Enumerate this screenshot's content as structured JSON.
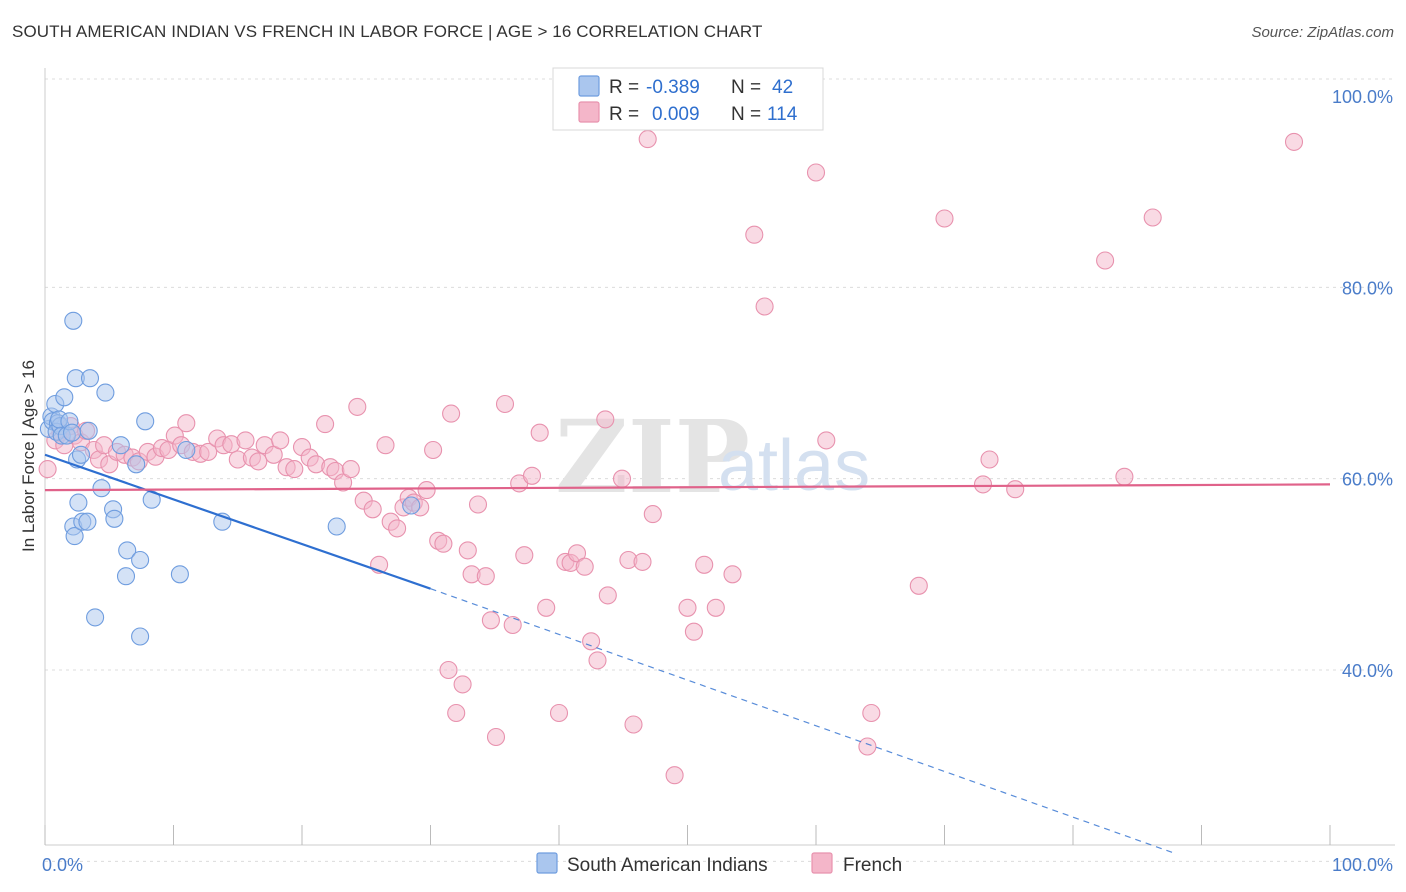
{
  "title": "SOUTH AMERICAN INDIAN VS FRENCH IN LABOR FORCE | AGE > 16 CORRELATION CHART",
  "source": "Source: ZipAtlas.com",
  "watermark": {
    "zip": "ZIP",
    "atlas": "atlas"
  },
  "colors": {
    "blue_fill": "#aac6ee",
    "blue_stroke": "#6f9ddf",
    "blue_line": "#2e6fd0",
    "pink_fill": "#f4b6c9",
    "pink_stroke": "#e892ae",
    "pink_line": "#e0628a",
    "grid": "#dcdcdc",
    "tick_text": "#4a7cc9"
  },
  "legend": {
    "rows": [
      {
        "r_label": "R =",
        "r_value": "-0.389",
        "n_label": "N =",
        "n_value": "42"
      },
      {
        "r_label": "R =",
        "r_value": "0.009",
        "n_label": "N =",
        "n_value": "114"
      }
    ]
  },
  "chart_data": {
    "type": "scatter",
    "title": "SOUTH AMERICAN INDIAN VS FRENCH IN LABOR FORCE | AGE > 16 CORRELATION CHART",
    "xlabel": "",
    "ylabel": "In Labor Force | Age > 16",
    "xlim": [
      0,
      100
    ],
    "ylim": [
      20,
      102
    ],
    "x_tick_labels": [
      {
        "value": 0,
        "label": "0.0%"
      },
      {
        "value": 100,
        "label": "100.0%"
      }
    ],
    "y_tick_labels": [
      {
        "value": 100,
        "label": "100.0%"
      },
      {
        "value": 80,
        "label": "80.0%"
      },
      {
        "value": 60,
        "label": "60.0%"
      },
      {
        "value": 40,
        "label": "40.0%"
      }
    ],
    "grid": true,
    "legend_position": "top-center",
    "series": [
      {
        "name": "South American Indians",
        "color": "#aac6ee",
        "r": -0.389,
        "n": 42,
        "trend": {
          "x0": 0,
          "y0": 62.5,
          "x1": 30,
          "y1": 48.5,
          "dash_to_x": 88,
          "dash_to_y": 20.8
        },
        "points": [
          [
            0.3,
            65.2
          ],
          [
            0.5,
            66.5
          ],
          [
            0.6,
            66.0
          ],
          [
            0.8,
            67.8
          ],
          [
            1.0,
            65.8
          ],
          [
            0.9,
            64.9
          ],
          [
            1.2,
            65.5
          ],
          [
            1.3,
            64.5
          ],
          [
            1.1,
            66.2
          ],
          [
            1.5,
            68.5
          ],
          [
            1.7,
            64.5
          ],
          [
            1.9,
            66.0
          ],
          [
            2.1,
            64.8
          ],
          [
            2.2,
            55.0
          ],
          [
            2.3,
            54.0
          ],
          [
            2.2,
            76.5
          ],
          [
            2.4,
            70.5
          ],
          [
            2.5,
            62.0
          ],
          [
            2.6,
            57.5
          ],
          [
            2.8,
            62.5
          ],
          [
            2.9,
            55.5
          ],
          [
            3.3,
            55.5
          ],
          [
            3.4,
            65.0
          ],
          [
            3.5,
            70.5
          ],
          [
            3.9,
            45.5
          ],
          [
            4.4,
            59.0
          ],
          [
            4.7,
            69.0
          ],
          [
            5.3,
            56.8
          ],
          [
            5.4,
            55.8
          ],
          [
            5.9,
            63.5
          ],
          [
            6.4,
            52.5
          ],
          [
            6.3,
            49.8
          ],
          [
            7.1,
            61.5
          ],
          [
            7.4,
            51.5
          ],
          [
            7.4,
            43.5
          ],
          [
            7.8,
            66.0
          ],
          [
            8.3,
            57.8
          ],
          [
            10.5,
            50.0
          ],
          [
            11.0,
            63.0
          ],
          [
            13.8,
            55.5
          ],
          [
            22.7,
            55.0
          ],
          [
            28.5,
            57.2
          ]
        ]
      },
      {
        "name": "French",
        "color": "#f4b6c9",
        "r": 0.009,
        "n": 114,
        "trend": {
          "x0": 0,
          "y0": 58.8,
          "x1": 100,
          "y1": 59.4
        },
        "points": [
          [
            0.2,
            61.0
          ],
          [
            0.8,
            64.0
          ],
          [
            1.2,
            64.8
          ],
          [
            1.5,
            63.5
          ],
          [
            2.0,
            65.5
          ],
          [
            2.3,
            64.5
          ],
          [
            2.8,
            63.8
          ],
          [
            3.2,
            65.0
          ],
          [
            3.8,
            63.0
          ],
          [
            4.2,
            62.0
          ],
          [
            4.6,
            63.5
          ],
          [
            5.0,
            61.5
          ],
          [
            5.6,
            62.8
          ],
          [
            6.2,
            62.5
          ],
          [
            6.8,
            62.2
          ],
          [
            7.3,
            61.8
          ],
          [
            8.0,
            62.8
          ],
          [
            8.6,
            62.3
          ],
          [
            9.1,
            63.2
          ],
          [
            9.6,
            63.0
          ],
          [
            10.1,
            64.5
          ],
          [
            10.6,
            63.5
          ],
          [
            11.0,
            65.8
          ],
          [
            11.5,
            62.8
          ],
          [
            12.1,
            62.6
          ],
          [
            12.7,
            62.8
          ],
          [
            13.4,
            64.2
          ],
          [
            13.9,
            63.5
          ],
          [
            14.5,
            63.6
          ],
          [
            15.0,
            62.0
          ],
          [
            15.6,
            64.0
          ],
          [
            16.1,
            62.2
          ],
          [
            16.6,
            61.8
          ],
          [
            17.1,
            63.5
          ],
          [
            17.8,
            62.5
          ],
          [
            18.3,
            64.0
          ],
          [
            18.8,
            61.2
          ],
          [
            19.4,
            61.0
          ],
          [
            20.0,
            63.3
          ],
          [
            20.6,
            62.2
          ],
          [
            21.1,
            61.5
          ],
          [
            21.8,
            65.7
          ],
          [
            22.2,
            61.2
          ],
          [
            22.6,
            60.8
          ],
          [
            23.2,
            59.6
          ],
          [
            23.8,
            61.0
          ],
          [
            24.3,
            67.5
          ],
          [
            24.8,
            57.7
          ],
          [
            25.5,
            56.8
          ],
          [
            26.0,
            51.0
          ],
          [
            26.5,
            63.5
          ],
          [
            26.9,
            55.5
          ],
          [
            27.4,
            54.8
          ],
          [
            27.9,
            57.0
          ],
          [
            28.3,
            58.0
          ],
          [
            28.7,
            57.5
          ],
          [
            29.2,
            57.0
          ],
          [
            29.7,
            58.8
          ],
          [
            30.2,
            63.0
          ],
          [
            30.6,
            53.5
          ],
          [
            31.0,
            53.2
          ],
          [
            31.4,
            40.0
          ],
          [
            31.6,
            66.8
          ],
          [
            32.0,
            35.5
          ],
          [
            32.5,
            38.5
          ],
          [
            32.9,
            52.5
          ],
          [
            33.2,
            50.0
          ],
          [
            33.7,
            57.3
          ],
          [
            34.3,
            49.8
          ],
          [
            34.7,
            45.2
          ],
          [
            35.1,
            33.0
          ],
          [
            35.8,
            67.8
          ],
          [
            36.4,
            44.7
          ],
          [
            36.9,
            59.5
          ],
          [
            37.3,
            52.0
          ],
          [
            37.9,
            60.3
          ],
          [
            38.5,
            64.8
          ],
          [
            39.0,
            46.5
          ],
          [
            40.0,
            35.5
          ],
          [
            40.5,
            51.3
          ],
          [
            40.9,
            51.2
          ],
          [
            41.4,
            52.2
          ],
          [
            42.0,
            50.8
          ],
          [
            42.5,
            43.0
          ],
          [
            43.0,
            41.0
          ],
          [
            43.6,
            66.2
          ],
          [
            43.8,
            47.8
          ],
          [
            44.9,
            60.0
          ],
          [
            45.4,
            51.5
          ],
          [
            45.8,
            34.3
          ],
          [
            46.5,
            51.3
          ],
          [
            46.9,
            95.5
          ],
          [
            47.3,
            56.3
          ],
          [
            49.0,
            29.0
          ],
          [
            50.0,
            46.5
          ],
          [
            50.5,
            44.0
          ],
          [
            51.3,
            51.0
          ],
          [
            52.2,
            46.5
          ],
          [
            53.5,
            50.0
          ],
          [
            55.2,
            85.5
          ],
          [
            56.0,
            78.0
          ],
          [
            60.0,
            92.0
          ],
          [
            60.8,
            64.0
          ],
          [
            64.3,
            35.5
          ],
          [
            64.0,
            32.0
          ],
          [
            68.0,
            48.8
          ],
          [
            70.0,
            87.2
          ],
          [
            73.0,
            59.4
          ],
          [
            73.5,
            62.0
          ],
          [
            75.5,
            58.9
          ],
          [
            82.5,
            82.8
          ],
          [
            84.0,
            60.2
          ],
          [
            86.2,
            87.3
          ],
          [
            97.2,
            95.2
          ]
        ]
      }
    ]
  }
}
